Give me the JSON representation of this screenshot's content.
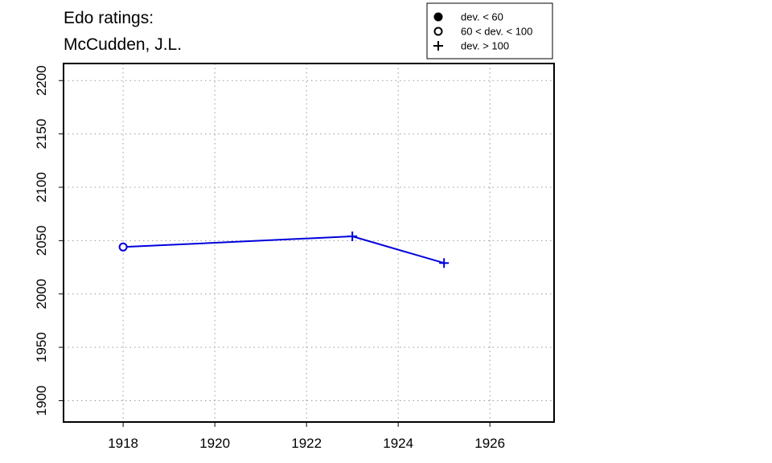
{
  "chart_data": {
    "type": "line",
    "title": [
      "Edo ratings:",
      "McCudden, J.L."
    ],
    "xlim": [
      1916.7,
      1927.4
    ],
    "ylim": [
      1880,
      2216
    ],
    "x_ticks": [
      1918,
      1920,
      1922,
      1924,
      1926
    ],
    "y_ticks": [
      1900,
      1950,
      2000,
      2050,
      2100,
      2150,
      2200
    ],
    "grid": true,
    "legend_position": "top-right",
    "legend": [
      {
        "marker": "filled-circle",
        "label": "dev. < 60"
      },
      {
        "marker": "open-circle",
        "label": "60 < dev. < 100"
      },
      {
        "marker": "plus",
        "label": "dev. > 100"
      }
    ],
    "series": [
      {
        "color": "#0000dd",
        "points": [
          {
            "x": 1918,
            "y": 2044,
            "marker": "open-circle"
          },
          {
            "x": 1923,
            "y": 2054,
            "marker": "plus"
          },
          {
            "x": 1925,
            "y": 2029,
            "marker": "plus"
          }
        ]
      }
    ]
  }
}
